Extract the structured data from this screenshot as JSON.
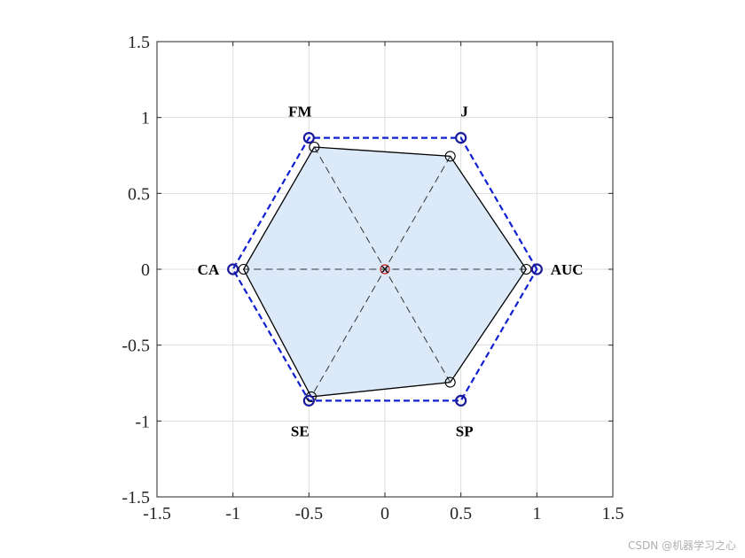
{
  "chart_data": {
    "type": "radar",
    "axes": [
      {
        "name": "AUC",
        "angle_deg": 0,
        "value": 0.93
      },
      {
        "name": "J",
        "angle_deg": 60,
        "value": 0.86
      },
      {
        "name": "FM",
        "angle_deg": 120,
        "value": 0.93
      },
      {
        "name": "CA",
        "angle_deg": 180,
        "value": 0.93
      },
      {
        "name": "SE",
        "angle_deg": 240,
        "value": 0.97
      },
      {
        "name": "SP",
        "angle_deg": 300,
        "value": 0.86
      }
    ],
    "reference_radius": 1.0,
    "xlim": [
      -1.5,
      1.5
    ],
    "ylim": [
      -1.5,
      1.5
    ],
    "xticks": [
      "-1.5",
      "-1",
      "-0.5",
      "0",
      "0.5",
      "1",
      "1.5"
    ],
    "yticks": [
      "-1.5",
      "-1",
      "-0.5",
      "0",
      "0.5",
      "1",
      "1.5"
    ],
    "grid": true,
    "colors": {
      "fill": "#dce9f8",
      "outline": "#000000",
      "reference": "#1020d0",
      "reference_marker": "#1a1a9a",
      "spokes": "#333333",
      "center_marker": "#cc2222",
      "grid": "#dddddd"
    }
  },
  "watermark": "CSDN @机器学习之心"
}
